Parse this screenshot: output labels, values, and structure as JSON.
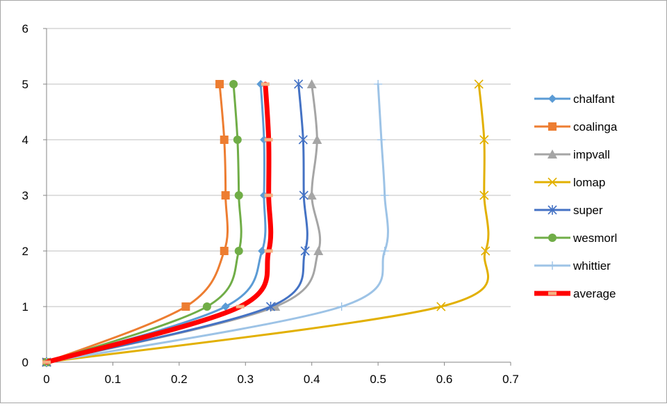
{
  "chart_data": {
    "type": "line",
    "title": "",
    "xlabel": "",
    "ylabel": "",
    "xlim": [
      0,
      0.7
    ],
    "ylim": [
      0,
      6
    ],
    "x_ticks": [
      0,
      0.1,
      0.2,
      0.3,
      0.4,
      0.5,
      0.6,
      0.7
    ],
    "x_tick_labels": [
      "0",
      "0.1",
      "0.2",
      "0.3",
      "0.4",
      "0.5",
      "0.6",
      "0.7"
    ],
    "y_ticks": [
      0,
      1,
      2,
      3,
      4,
      5,
      6
    ],
    "y_tick_labels": [
      "0",
      "1",
      "2",
      "3",
      "4",
      "5",
      "6"
    ],
    "grid": "horizontal",
    "legend_position": "right",
    "series": [
      {
        "name": "chalfant",
        "color": "#5b9bd5",
        "marker": "diamond",
        "points": [
          [
            0,
            0
          ],
          [
            0.27,
            1
          ],
          [
            0.325,
            2
          ],
          [
            0.328,
            3
          ],
          [
            0.328,
            4
          ],
          [
            0.323,
            5
          ]
        ]
      },
      {
        "name": "coalinga",
        "color": "#ed7d31",
        "marker": "square",
        "points": [
          [
            0,
            0
          ],
          [
            0.21,
            1
          ],
          [
            0.268,
            2
          ],
          [
            0.27,
            3
          ],
          [
            0.268,
            4
          ],
          [
            0.261,
            5
          ]
        ]
      },
      {
        "name": "impvall",
        "color": "#a5a5a5",
        "marker": "triangle",
        "points": [
          [
            0,
            0
          ],
          [
            0.345,
            1
          ],
          [
            0.41,
            2
          ],
          [
            0.4,
            3
          ],
          [
            0.408,
            4
          ],
          [
            0.4,
            5
          ]
        ]
      },
      {
        "name": "lomap",
        "color": "#e2b000",
        "marker": "x",
        "points": [
          [
            0,
            0
          ],
          [
            0.595,
            1
          ],
          [
            0.662,
            2
          ],
          [
            0.66,
            3
          ],
          [
            0.66,
            4
          ],
          [
            0.652,
            5
          ]
        ]
      },
      {
        "name": "super",
        "color": "#4472c4",
        "marker": "asterisk",
        "points": [
          [
            0,
            0
          ],
          [
            0.338,
            1
          ],
          [
            0.39,
            2
          ],
          [
            0.388,
            3
          ],
          [
            0.387,
            4
          ],
          [
            0.38,
            5
          ]
        ]
      },
      {
        "name": "wesmorl",
        "color": "#70ad47",
        "marker": "circle",
        "points": [
          [
            0,
            0
          ],
          [
            0.242,
            1
          ],
          [
            0.29,
            2
          ],
          [
            0.29,
            3
          ],
          [
            0.288,
            4
          ],
          [
            0.282,
            5
          ]
        ]
      },
      {
        "name": "whittier",
        "color": "#9dc3e6",
        "marker": "plus",
        "points": [
          [
            0,
            0
          ],
          [
            0.445,
            1
          ],
          [
            0.51,
            2
          ],
          [
            0.51,
            3
          ],
          [
            0.505,
            4
          ],
          [
            0.5,
            5
          ]
        ]
      },
      {
        "name": "average",
        "color": "#ff0000",
        "marker": "dash",
        "marker_color": "#f4b183",
        "points": [
          [
            0,
            0
          ],
          [
            0.292,
            1
          ],
          [
            0.335,
            2
          ],
          [
            0.335,
            3
          ],
          [
            0.335,
            4
          ],
          [
            0.33,
            5
          ]
        ]
      }
    ]
  }
}
